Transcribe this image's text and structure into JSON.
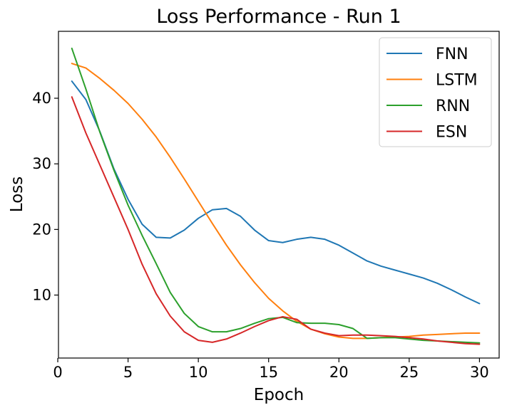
{
  "chart_data": {
    "type": "line",
    "title": "Loss Performance - Run 1",
    "xlabel": "Epoch",
    "ylabel": "Loss",
    "x": [
      1,
      2,
      3,
      4,
      5,
      6,
      7,
      8,
      9,
      10,
      11,
      12,
      13,
      14,
      15,
      16,
      17,
      18,
      19,
      20,
      21,
      22,
      23,
      24,
      25,
      26,
      27,
      28,
      29,
      30
    ],
    "xlim": [
      0.05,
      31.4
    ],
    "ylim": [
      0.4,
      50.2
    ],
    "xticks": [
      0,
      5,
      10,
      15,
      20,
      25,
      30
    ],
    "yticks": [
      10,
      20,
      30,
      40
    ],
    "grid": false,
    "legend_position": "top-right",
    "series": [
      {
        "name": "FNN",
        "color": "#1f77b4",
        "values": [
          42.6,
          39.8,
          34.9,
          29.2,
          24.6,
          20.8,
          18.8,
          18.7,
          19.9,
          21.7,
          23.0,
          23.2,
          22.0,
          19.9,
          18.3,
          18.0,
          18.5,
          18.8,
          18.5,
          17.6,
          16.4,
          15.2,
          14.4,
          13.8,
          13.2,
          12.6,
          11.8,
          10.8,
          9.7,
          8.7
        ]
      },
      {
        "name": "LSTM",
        "color": "#ff7f0e",
        "values": [
          45.3,
          44.6,
          43.0,
          41.2,
          39.2,
          36.8,
          34.1,
          31.0,
          27.7,
          24.3,
          20.9,
          17.6,
          14.6,
          11.9,
          9.5,
          7.6,
          6.0,
          4.8,
          4.1,
          3.6,
          3.4,
          3.4,
          3.5,
          3.6,
          3.7,
          3.9,
          4.0,
          4.1,
          4.2,
          4.2
        ]
      },
      {
        "name": "RNN",
        "color": "#2ca02c",
        "values": [
          47.6,
          41.4,
          34.8,
          29.0,
          23.7,
          19.1,
          14.8,
          10.4,
          7.2,
          5.2,
          4.4,
          4.4,
          4.9,
          5.7,
          6.4,
          6.6,
          5.8,
          5.7,
          5.7,
          5.5,
          4.9,
          3.4,
          3.5,
          3.5,
          3.3,
          3.1,
          3.0,
          2.9,
          2.8,
          2.7
        ]
      },
      {
        "name": "ESN",
        "color": "#d62728",
        "values": [
          40.2,
          34.7,
          29.8,
          24.9,
          20.0,
          14.7,
          10.2,
          6.8,
          4.4,
          3.1,
          2.8,
          3.3,
          4.2,
          5.2,
          6.1,
          6.7,
          6.3,
          4.8,
          4.2,
          3.8,
          3.9,
          3.9,
          3.8,
          3.7,
          3.5,
          3.3,
          3.0,
          2.8,
          2.6,
          2.5
        ]
      }
    ]
  }
}
